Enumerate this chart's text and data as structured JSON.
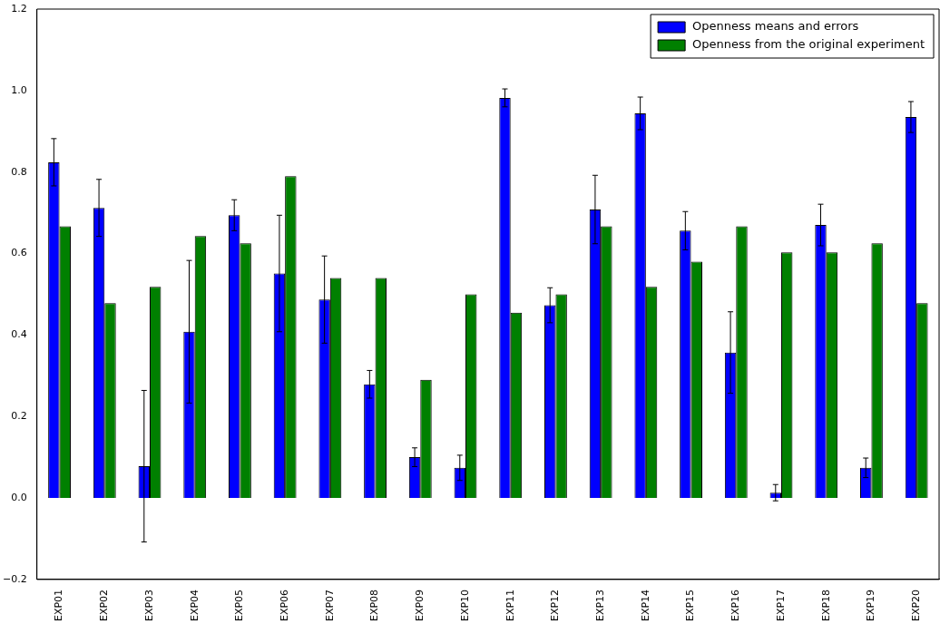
{
  "chart_data": {
    "type": "bar",
    "categories": [
      "EXP01",
      "EXP02",
      "EXP03",
      "EXP04",
      "EXP05",
      "EXP06",
      "EXP07",
      "EXP08",
      "EXP09",
      "EXP10",
      "EXP11",
      "EXP12",
      "EXP13",
      "EXP14",
      "EXP15",
      "EXP16",
      "EXP17",
      "EXP18",
      "EXP19",
      "EXP20"
    ],
    "series": [
      {
        "name": "Openness means and errors",
        "color": "#0000ff",
        "values": [
          0.824,
          0.712,
          0.078,
          0.408,
          0.694,
          0.551,
          0.487,
          0.279,
          0.1,
          0.074,
          0.982,
          0.473,
          0.708,
          0.944,
          0.656,
          0.357,
          0.013,
          0.67,
          0.074,
          0.935
        ],
        "errors": [
          0.058,
          0.07,
          0.186,
          0.175,
          0.038,
          0.143,
          0.107,
          0.034,
          0.023,
          0.031,
          0.022,
          0.043,
          0.084,
          0.04,
          0.047,
          0.1,
          0.02,
          0.051,
          0.024,
          0.038
        ]
      },
      {
        "name": "Openness from the original experiment",
        "color": "#008000",
        "values": [
          0.667,
          0.478,
          0.518,
          0.643,
          0.625,
          0.79,
          0.54,
          0.54,
          0.29,
          0.5,
          0.455,
          0.5,
          0.667,
          0.518,
          0.58,
          0.667,
          0.603,
          0.603,
          0.625,
          0.478
        ]
      }
    ],
    "ylim": [
      -0.2,
      1.2
    ],
    "yticks": [
      {
        "value": -0.2,
        "label": "−0.2"
      },
      {
        "value": 0,
        "label": "0.0"
      },
      {
        "value": 0.2,
        "label": "0.2"
      },
      {
        "value": 0.4,
        "label": "0.4"
      },
      {
        "value": 0.6,
        "label": "0.6"
      },
      {
        "value": 0.8,
        "label": "0.8"
      },
      {
        "value": 1,
        "label": "1.0"
      },
      {
        "value": 1.2,
        "label": "1.2"
      }
    ],
    "grid": false,
    "legend": "top right"
  }
}
